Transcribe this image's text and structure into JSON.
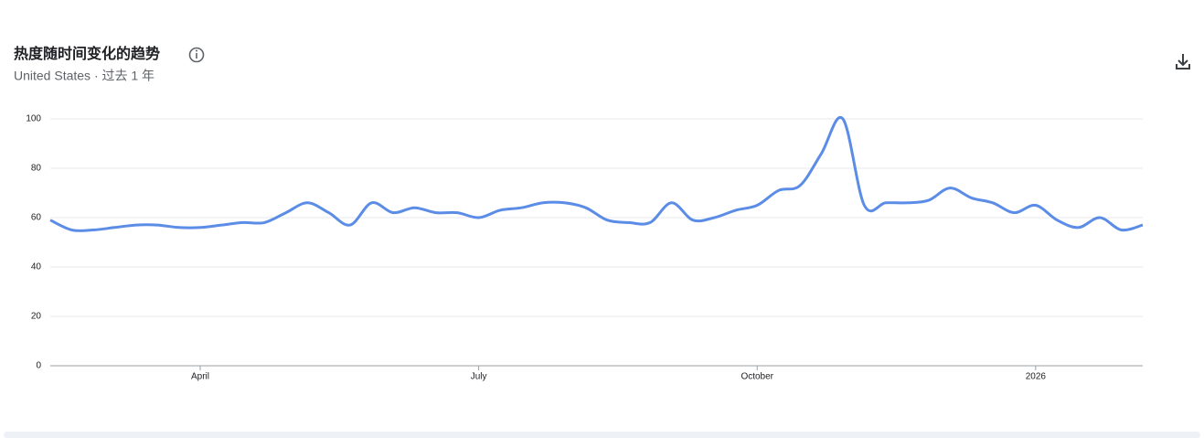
{
  "chart_data": {
    "type": "line",
    "title": "热度随时间变化的趋势",
    "subtitle": "United States · 过去 1 年",
    "categories": [
      null,
      null,
      null,
      null,
      null,
      null,
      null,
      "April",
      null,
      null,
      null,
      null,
      null,
      null,
      null,
      null,
      null,
      null,
      null,
      null,
      "July",
      null,
      null,
      null,
      null,
      null,
      null,
      null,
      null,
      null,
      null,
      null,
      null,
      "October",
      null,
      null,
      null,
      null,
      null,
      null,
      null,
      null,
      null,
      null,
      null,
      null,
      "2026",
      null,
      null,
      null,
      null,
      null
    ],
    "series": [
      {
        "color": "#5b8ce6",
        "values": [
          59,
          55,
          55,
          56,
          57,
          57,
          56,
          56,
          57,
          58,
          58,
          62,
          66,
          62,
          57,
          66,
          62,
          64,
          62,
          62,
          60,
          63,
          64,
          66,
          66,
          64,
          59,
          58,
          58,
          66,
          59,
          60,
          63,
          65,
          71,
          73,
          86,
          100,
          65,
          66,
          66,
          67,
          72,
          68,
          66,
          62,
          65,
          59,
          56,
          60,
          55,
          57
        ]
      }
    ],
    "ylim": [
      0,
      100
    ],
    "yticks": [
      0,
      20,
      40,
      60,
      80,
      100
    ],
    "grid": true
  }
}
